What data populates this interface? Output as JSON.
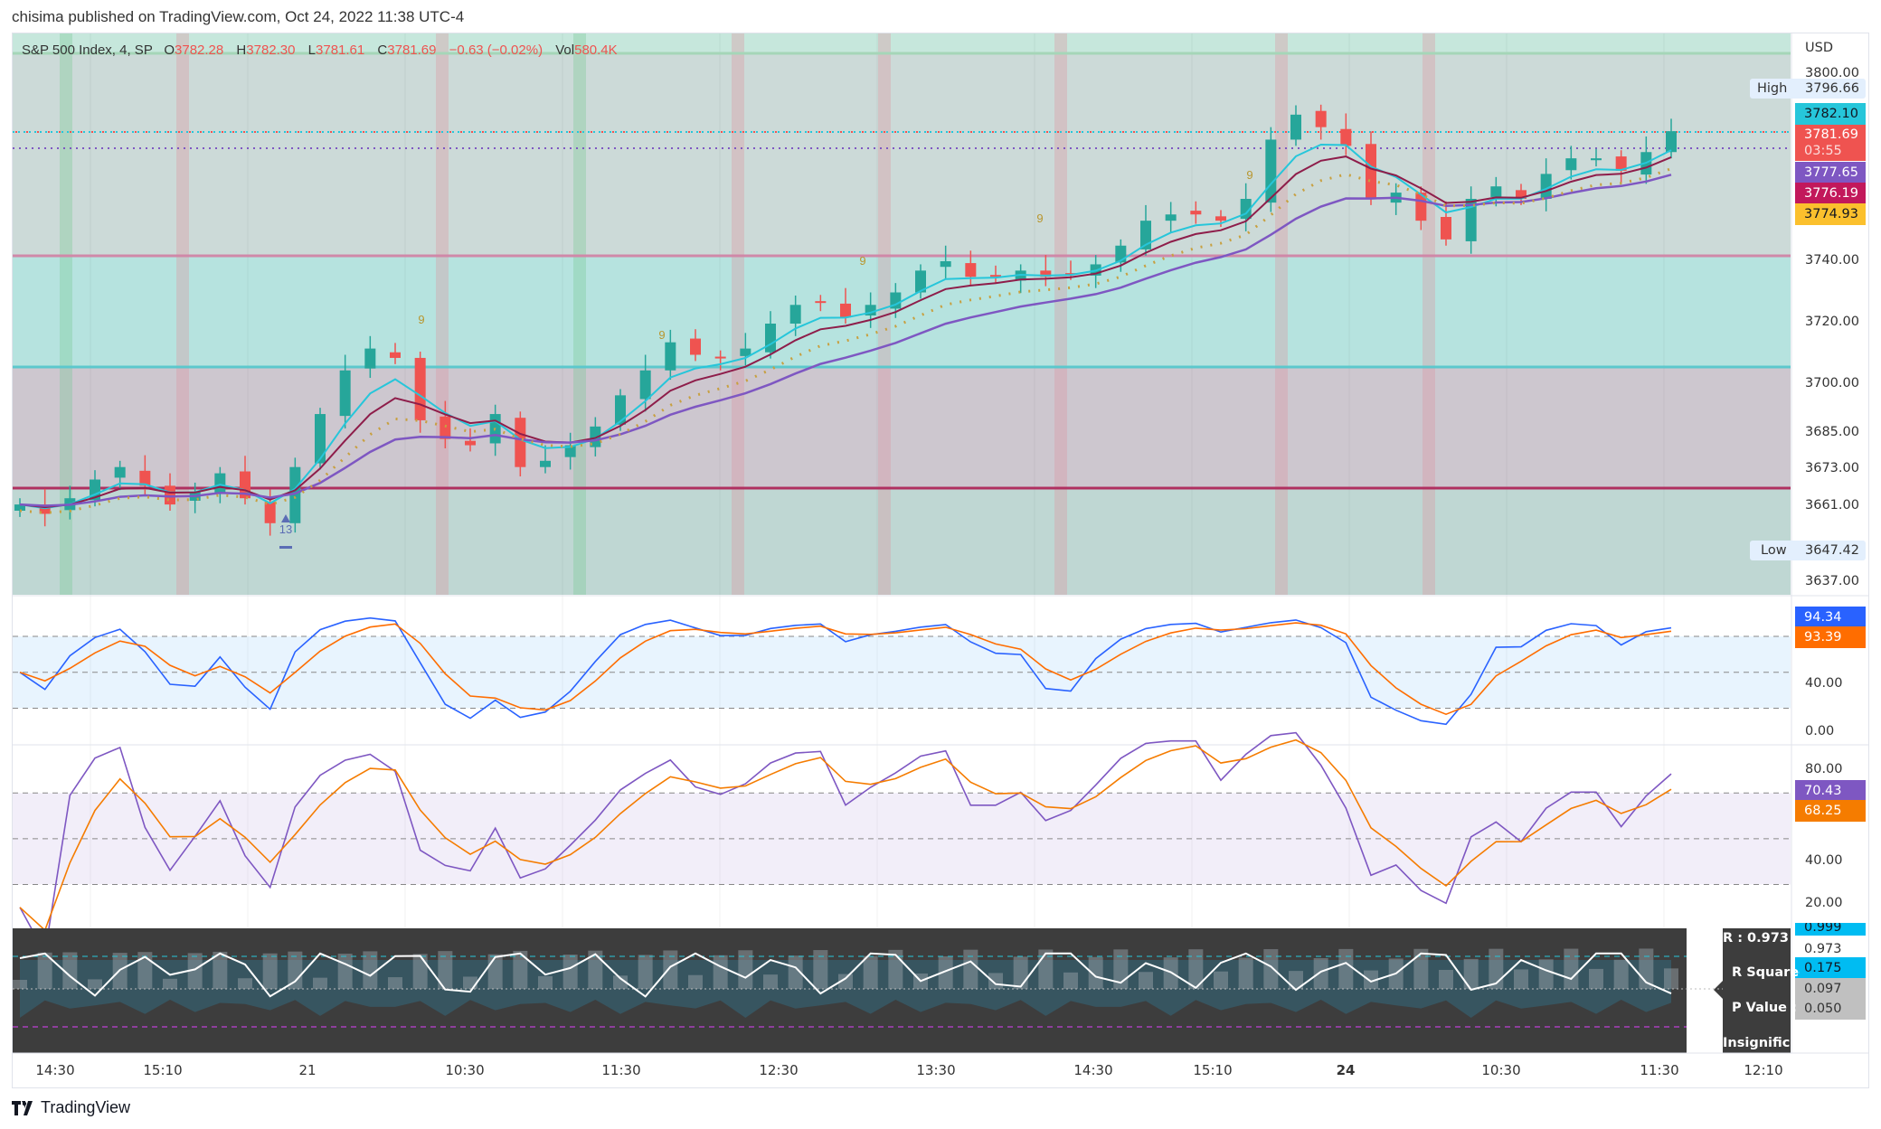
{
  "published": "chisima published on TradingView.com, Oct 24, 2022 11:38 UTC-4",
  "legend": {
    "symbol": "S&P 500 Index, 4, SP",
    "o_label": "O",
    "o": "3782.28",
    "h_label": "H",
    "h": "3782.30",
    "l_label": "L",
    "l": "3781.61",
    "c_label": "C",
    "c": "3781.69",
    "change": "−0.63 (−0.02%)",
    "vol_label": "Vol",
    "vol": "580.4K"
  },
  "price_axis": {
    "currency": "USD",
    "ticks": [
      "3800.00",
      "3740.00",
      "3720.00",
      "3700.00",
      "3685.00",
      "3673.00",
      "3661.00",
      "3637.00"
    ],
    "high_label": "High",
    "high": "3796.66",
    "low_label": "Low",
    "low": "3647.42",
    "tags": [
      {
        "value": "3782.10",
        "color": "#26c6da",
        "text": "#131722"
      },
      {
        "value": "3781.69",
        "sub": "03:55",
        "color": "#ef5350",
        "text": "#ffffff"
      },
      {
        "value": "3777.65",
        "color": "#7e57c2",
        "text": "#ffffff"
      },
      {
        "value": "3776.19",
        "color": "#c2185b",
        "text": "#ffffff"
      },
      {
        "value": "3774.93",
        "color": "#fbc02d",
        "text": "#131722"
      }
    ]
  },
  "stoch_pane": {
    "ticks": [
      "40.00",
      "0.00"
    ],
    "k": "94.34",
    "d": "93.39",
    "k_color": "#2962ff",
    "d_color": "#ff6d00"
  },
  "rsi_pane": {
    "ticks": [
      "80.00",
      "40.00",
      "20.00"
    ],
    "rsi": "70.43",
    "ma": "68.25",
    "rsi_color": "#7e57c2",
    "ma_color": "#f57c00"
  },
  "corr_pane": {
    "r_label": "R : 0.973",
    "r2_label": "R Squared",
    "p_label": "P Value :",
    "sig_label": "Insignificant",
    "values": [
      "0.999",
      "0.973",
      "0.175",
      "0.097",
      "0.050"
    ]
  },
  "td_marks": [
    "9",
    "9",
    "9",
    "9",
    "9",
    "13"
  ],
  "time_axis": [
    "14:30",
    "15:10",
    "21",
    "10:30",
    "11:30",
    "12:30",
    "13:30",
    "14:30",
    "15:10",
    "24",
    "10:30",
    "11:30",
    "12:10"
  ],
  "brand": "TradingView",
  "chart_data": {
    "type": "candlestick",
    "title": "S&P 500 Index, 4, SP",
    "ylabel": "USD",
    "ylim": [
      3632,
      3805
    ],
    "closes": [
      3662,
      3659,
      3664,
      3670,
      3674,
      3668,
      3662,
      3666,
      3672,
      3664,
      3656,
      3674,
      3691,
      3705,
      3712,
      3709,
      3689,
      3683,
      3681,
      3691,
      3674,
      3676,
      3681,
      3687,
      3697,
      3705,
      3714,
      3710,
      3709,
      3712,
      3720,
      3726,
      3727,
      3722,
      3726,
      3730,
      3737,
      3740,
      3735,
      3735,
      3737,
      3735,
      3736,
      3739,
      3745,
      3753,
      3755,
      3755,
      3753,
      3760,
      3779,
      3787,
      3783,
      3777,
      3760,
      3762,
      3753,
      3747,
      3760,
      3764,
      3760,
      3768,
      3773,
      3773,
      3769,
      3775,
      3781.69
    ],
    "horizontal_levels": [
      3796,
      3741,
      3708,
      3668
    ]
  }
}
